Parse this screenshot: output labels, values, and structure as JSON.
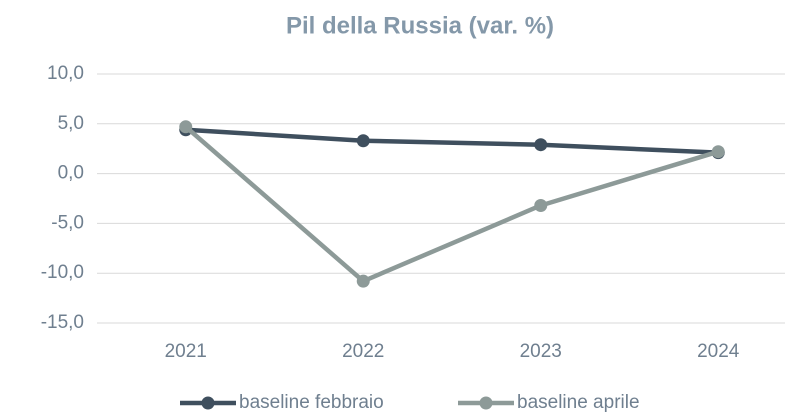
{
  "chart_data": {
    "type": "line",
    "title": "Pil della Russia (var. %)",
    "categories": [
      "2021",
      "2022",
      "2023",
      "2024"
    ],
    "series": [
      {
        "name": "baseline febbraio",
        "color": "#3f4f5e",
        "values": [
          4.4,
          3.3,
          2.9,
          2.1
        ]
      },
      {
        "name": "baseline aprile",
        "color": "#8d9a98",
        "values": [
          4.7,
          -10.8,
          -3.2,
          2.2
        ]
      }
    ],
    "ylim": [
      -15,
      10
    ],
    "yticks": [
      {
        "value": -15,
        "label": "-15,0"
      },
      {
        "value": -10,
        "label": "-10,0"
      },
      {
        "value": -5,
        "label": "-5,0"
      },
      {
        "value": 0,
        "label": "0,0"
      },
      {
        "value": 5,
        "label": "5,0"
      },
      {
        "value": 10,
        "label": "10,0"
      }
    ],
    "grid": true,
    "legend": "bottom"
  }
}
